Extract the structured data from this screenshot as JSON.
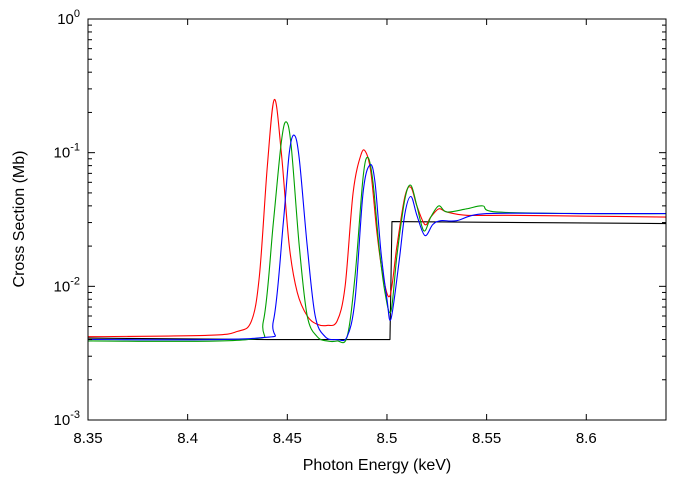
{
  "chart_data": {
    "type": "line",
    "title": "",
    "xlabel": "Photon Energy (keV)",
    "ylabel": "Cross Section (Mb)",
    "xlim": [
      8.35,
      8.64
    ],
    "ylim": [
      0.001,
      1
    ],
    "yscale": "log",
    "grid": false,
    "legend": "none",
    "x_ticks": [
      {
        "value": 8.35,
        "label": "8.35"
      },
      {
        "value": 8.4,
        "label": "8.4"
      },
      {
        "value": 8.45,
        "label": "8.45"
      },
      {
        "value": 8.5,
        "label": "8.5"
      },
      {
        "value": 8.55,
        "label": "8.55"
      },
      {
        "value": 8.6,
        "label": "8.6"
      }
    ],
    "y_ticks": [
      {
        "value": 0.001,
        "base": "10",
        "exp": "-3"
      },
      {
        "value": 0.01,
        "base": "10",
        "exp": "-2"
      },
      {
        "value": 0.1,
        "base": "10",
        "exp": "-1"
      },
      {
        "value": 1,
        "base": "10",
        "exp": "0"
      }
    ],
    "series": [
      {
        "color": "#000000",
        "x": [
          8.35,
          8.44,
          8.5015,
          8.5025,
          8.64
        ],
        "y": [
          0.0041,
          0.004,
          0.004,
          0.0305,
          0.0295
        ]
      },
      {
        "color": "#ff0000",
        "x": [
          8.35,
          8.41,
          8.425,
          8.432,
          8.436,
          8.44,
          8.4435,
          8.447,
          8.451,
          8.455,
          8.46,
          8.465,
          8.47,
          8.475,
          8.479,
          8.483,
          8.487,
          8.4895,
          8.492,
          8.495,
          8.498,
          8.5015,
          8.505,
          8.509,
          8.512,
          8.515,
          8.519,
          8.522,
          8.526,
          8.53,
          8.54,
          8.56,
          8.6,
          8.64
        ],
        "y": [
          0.0042,
          0.0043,
          0.0046,
          0.0055,
          0.012,
          0.08,
          0.25,
          0.1,
          0.02,
          0.009,
          0.006,
          0.0052,
          0.0051,
          0.0055,
          0.01,
          0.05,
          0.097,
          0.1,
          0.07,
          0.025,
          0.012,
          0.0085,
          0.02,
          0.047,
          0.055,
          0.04,
          0.029,
          0.033,
          0.038,
          0.036,
          0.034,
          0.034,
          0.0335,
          0.033
        ]
      },
      {
        "color": "#00a000",
        "x": [
          8.35,
          8.43,
          8.438,
          8.443,
          8.447,
          8.4495,
          8.452,
          8.456,
          8.46,
          8.465,
          8.47,
          8.475,
          8.48,
          8.484,
          8.488,
          8.4905,
          8.493,
          8.496,
          8.499,
          8.502,
          8.505,
          8.509,
          8.512,
          8.515,
          8.5185,
          8.522,
          8.526,
          8.53,
          8.54,
          8.548,
          8.555,
          8.6,
          8.64
        ],
        "y": [
          0.0039,
          0.004,
          0.0055,
          0.03,
          0.12,
          0.17,
          0.11,
          0.02,
          0.006,
          0.0042,
          0.0039,
          0.0039,
          0.0042,
          0.012,
          0.065,
          0.092,
          0.06,
          0.02,
          0.009,
          0.0065,
          0.017,
          0.045,
          0.057,
          0.04,
          0.026,
          0.033,
          0.04,
          0.036,
          0.038,
          0.04,
          0.036,
          0.035,
          0.035
        ]
      },
      {
        "color": "#0000ff",
        "x": [
          8.35,
          8.435,
          8.443,
          8.448,
          8.451,
          8.4535,
          8.456,
          8.46,
          8.464,
          8.469,
          8.475,
          8.48,
          8.484,
          8.488,
          8.4915,
          8.494,
          8.497,
          8.5,
          8.502,
          8.506,
          8.509,
          8.512,
          8.515,
          8.519,
          8.523,
          8.527,
          8.535,
          8.55,
          8.6,
          8.64
        ],
        "y": [
          0.004,
          0.0041,
          0.0055,
          0.03,
          0.1,
          0.135,
          0.09,
          0.02,
          0.006,
          0.0042,
          0.004,
          0.0042,
          0.008,
          0.05,
          0.081,
          0.06,
          0.018,
          0.008,
          0.0057,
          0.015,
          0.035,
          0.047,
          0.034,
          0.024,
          0.029,
          0.031,
          0.031,
          0.035,
          0.035,
          0.035
        ]
      }
    ]
  }
}
